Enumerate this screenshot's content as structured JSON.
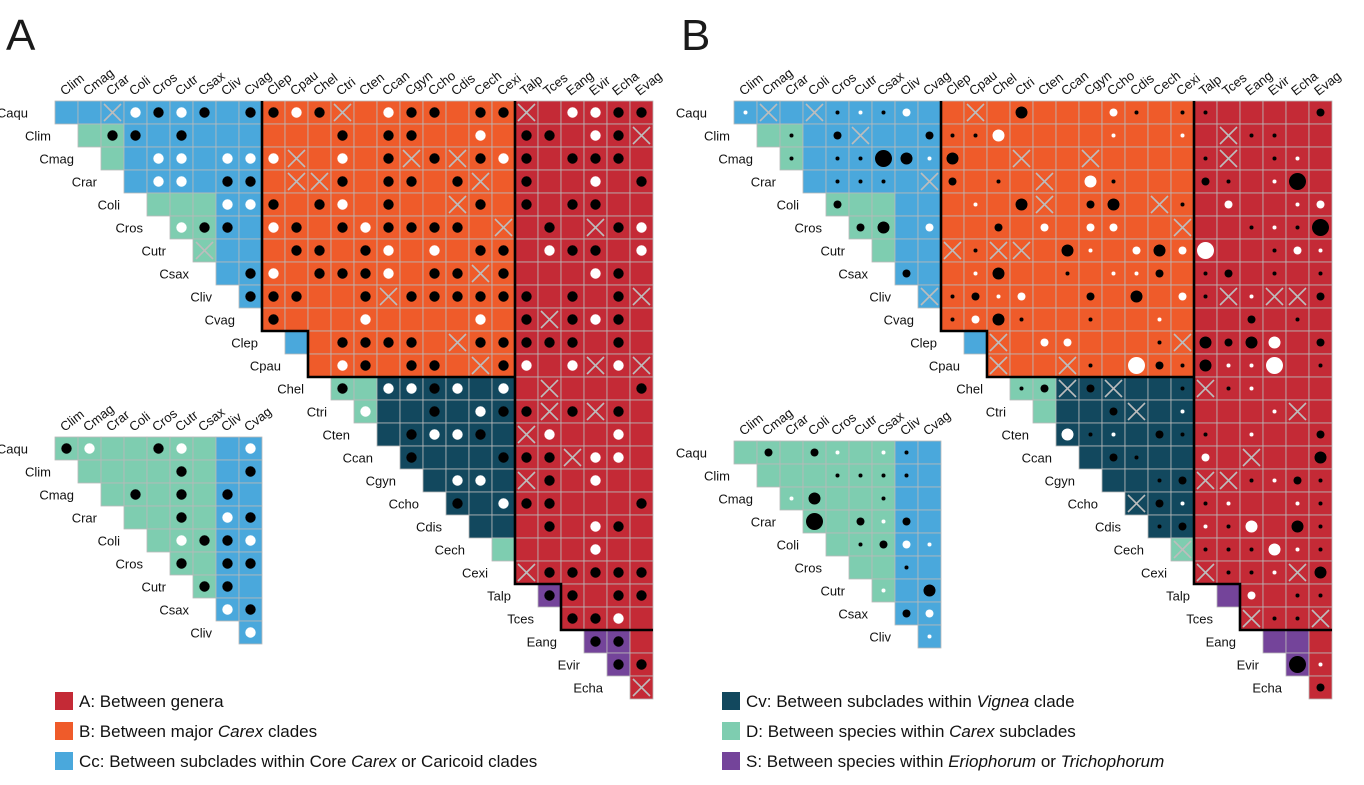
{
  "panels": [
    {
      "letter": "A"
    },
    {
      "letter": "B"
    }
  ],
  "taxa": [
    "Caqu",
    "Clim",
    "Cmag",
    "Crar",
    "Coli",
    "Cros",
    "Cutr",
    "Csax",
    "Cliv",
    "Cvag",
    "Clep",
    "Cpau",
    "Chel",
    "Ctri",
    "Cten",
    "Ccan",
    "Cgyn",
    "Ccho",
    "Cdis",
    "Cech",
    "Cexi",
    "Talp",
    "Tces",
    "Eang",
    "Evir",
    "Echa",
    "Evag"
  ],
  "inset_taxa": [
    "Caqu",
    "Clim",
    "Cmag",
    "Crar",
    "Coli",
    "Cros",
    "Cutr",
    "Csax",
    "Cliv",
    "Cvag"
  ],
  "group_colors": {
    "A": "#c42a36",
    "B": "#ef5b2a",
    "Cc": "#4aa8dc",
    "Cv": "#12485e",
    "D": "#7ecdb0",
    "S": "#74449a"
  },
  "legend": [
    {
      "key": "A",
      "color": "#c42a36",
      "segments": [
        {
          "t": "A: Between genera",
          "i": false
        }
      ]
    },
    {
      "key": "B",
      "color": "#ef5b2a",
      "segments": [
        {
          "t": "B: Between major ",
          "i": false
        },
        {
          "t": "Carex",
          "i": true
        },
        {
          "t": " clades",
          "i": false
        }
      ]
    },
    {
      "key": "Cc",
      "color": "#4aa8dc",
      "segments": [
        {
          "t": "Cc: Between subclades within Core ",
          "i": false
        },
        {
          "t": "Carex",
          "i": true
        },
        {
          "t": " or Caricoid clades",
          "i": false
        }
      ]
    },
    {
      "key": "Cv",
      "color": "#12485e",
      "segments": [
        {
          "t": "Cv: Between subclades within ",
          "i": false
        },
        {
          "t": "Vignea",
          "i": true
        },
        {
          "t": " clade",
          "i": false
        }
      ]
    },
    {
      "key": "D",
      "color": "#7ecdb0",
      "segments": [
        {
          "t": "D: Between species within ",
          "i": false
        },
        {
          "t": "Carex",
          "i": true
        },
        {
          "t": " subclades",
          "i": false
        }
      ]
    },
    {
      "key": "S",
      "color": "#74449a",
      "segments": [
        {
          "t": "S: Between species within ",
          "i": false
        },
        {
          "t": "Eriophorum",
          "i": true
        },
        {
          "t": " or ",
          "i": false
        },
        {
          "t": "Trichophorum",
          "i": true
        }
      ]
    }
  ]
}
